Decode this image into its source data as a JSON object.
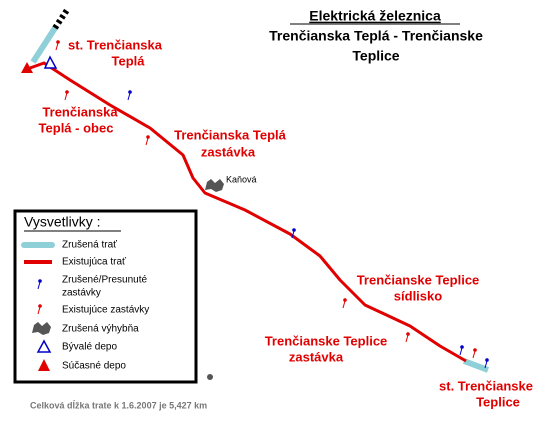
{
  "header": {
    "heading": "Elektrická železnica",
    "subtitle_lines": [
      "Trenčianska Teplá - Trenčianske",
      "Teplice"
    ]
  },
  "labels": [
    {
      "lines": [
        "st. Trenčianska",
        "Teplá"
      ]
    },
    {
      "lines": [
        "Trenčianska",
        "Teplá - obec"
      ]
    },
    {
      "lines": [
        "Trenčianska Teplá",
        "zastávka"
      ]
    },
    {
      "lines": [
        "Kaňová"
      ]
    },
    {
      "lines": [
        "Trenčianske Teplice",
        "sídlisko"
      ]
    },
    {
      "lines": [
        "Trenčianske Teplice",
        "zastávka"
      ]
    },
    {
      "lines": [
        "st. Trenčianske",
        "Teplice"
      ]
    }
  ],
  "legend": {
    "title": "Vysvetlivky :",
    "items": [
      {
        "lines": [
          "Zrušená trať"
        ]
      },
      {
        "lines": [
          "Existujúca trať"
        ]
      },
      {
        "lines": [
          "Zrušené/Presunuté",
          "zastávky"
        ]
      },
      {
        "lines": [
          "Existujúce zastávky"
        ]
      },
      {
        "lines": [
          "Zrušená výhybňa"
        ]
      },
      {
        "lines": [
          "Bývalé depo"
        ]
      },
      {
        "lines": [
          "Súčasné depo"
        ]
      }
    ]
  },
  "footer": "Celková dĺžka trate k 1.6.2007 je 5,427 km"
}
